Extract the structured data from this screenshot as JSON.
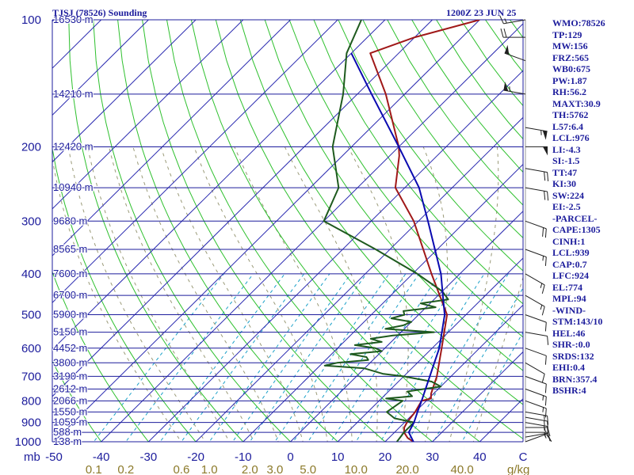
{
  "header": {
    "station_title": "TJSJ (78526) Sounding",
    "time_label": "1200Z 23 JUN 25"
  },
  "index_panel": [
    "WMO:78526",
    "TP:129",
    "MW:156",
    "FRZ:565",
    "WB0:675",
    "PW:1.87",
    "RH:56.2",
    "MAXT:30.9",
    "TH:5762",
    "L57:6.4",
    "LCL:976",
    "LI:-4.3",
    "SI:-1.5",
    "TT:47",
    "KI:30",
    "SW:224",
    "EI:-2.5",
    "-PARCEL-",
    "CAPE:1305",
    "CINH:1",
    "LCL:939",
    "CAP:0.7",
    "LFC:924",
    "EL:774",
    "MPL:94",
    "-WIND-",
    "STM:143/10",
    "HEL:46",
    "SHR-:0.0",
    "SRDS:132",
    "EHI:0.4",
    "BRN:357.4",
    "BSHR:4"
  ],
  "colors": {
    "isobar": "#1c1c9c",
    "isotherm": "#2a2ab0",
    "dry_adiabat": "#2ec02e",
    "moist_adiabat": "#9a9a78",
    "mixing_ratio": "#1aa0c8",
    "temperature": "#a01818",
    "dewpoint": "#1e5a1e",
    "parcel": "#0a0ab0",
    "wind": "#202020",
    "label_blue": "#1c1c9c",
    "label_olive": "#8c7a2a"
  },
  "chart_data": {
    "type": "line",
    "chart_kind": "skew-T log-P",
    "pressure_range_mb": [
      1000,
      100
    ],
    "temperature_range_c": [
      -50,
      50
    ],
    "pressure_axis_label": "mb",
    "mixing_ratio_unit": "g/kg",
    "pressure_ticks": [
      "100",
      "200",
      "300",
      "400",
      "500",
      "600",
      "700",
      "800",
      "900",
      "1000"
    ],
    "temperature_ticks": [
      "-50",
      "-40",
      "-30",
      "-20",
      "-10",
      "0",
      "10",
      "20",
      "30",
      "40",
      "C"
    ],
    "mixing_ratio_ticks": [
      "0.1",
      "0.2",
      "0.6",
      "1.0",
      "2.0",
      "3.0",
      "5.0",
      "10.0",
      "20.0",
      "40.0"
    ],
    "height_labels": [
      {
        "p": 100,
        "label": "16530 m"
      },
      {
        "p": 150,
        "label": "14210 m"
      },
      {
        "p": 200,
        "label": "12420 m"
      },
      {
        "p": 250,
        "label": "10940 m"
      },
      {
        "p": 300,
        "label": "9680 m"
      },
      {
        "p": 350,
        "label": "8565 m"
      },
      {
        "p": 400,
        "label": "7600 m"
      },
      {
        "p": 450,
        "label": "6700 m"
      },
      {
        "p": 500,
        "label": "5900 m"
      },
      {
        "p": 550,
        "label": "5150 m"
      },
      {
        "p": 600,
        "label": "4452 m"
      },
      {
        "p": 650,
        "label": "3800 m"
      },
      {
        "p": 700,
        "label": "3190 m"
      },
      {
        "p": 750,
        "label": "2612 m"
      },
      {
        "p": 800,
        "label": "2066 m"
      },
      {
        "p": 850,
        "label": "1550 m"
      },
      {
        "p": 900,
        "label": "1059 m"
      },
      {
        "p": 950,
        "label": "588 m"
      },
      {
        "p": 1000,
        "label": "138 m"
      }
    ],
    "series": [
      {
        "name": "temperature",
        "points": [
          [
            1000,
            26
          ],
          [
            980,
            24
          ],
          [
            950,
            22
          ],
          [
            925,
            21
          ],
          [
            900,
            20.5
          ],
          [
            850,
            20
          ],
          [
            800,
            19
          ],
          [
            790,
            20.5
          ],
          [
            770,
            19.5
          ],
          [
            700,
            17
          ],
          [
            600,
            12
          ],
          [
            500,
            6
          ],
          [
            400,
            -6
          ],
          [
            300,
            -21
          ],
          [
            250,
            -32
          ],
          [
            210,
            -38
          ],
          [
            200,
            -40
          ],
          [
            150,
            -54
          ],
          [
            120,
            -66
          ],
          [
            110,
            -60
          ],
          [
            100,
            -50
          ]
        ]
      },
      {
        "name": "dewpoint",
        "points": [
          [
            1000,
            22.5
          ],
          [
            950,
            22
          ],
          [
            900,
            22
          ],
          [
            880,
            17
          ],
          [
            850,
            14
          ],
          [
            800,
            15
          ],
          [
            790,
            11
          ],
          [
            780,
            16
          ],
          [
            760,
            14
          ],
          [
            740,
            20
          ],
          [
            720,
            17
          ],
          [
            700,
            10
          ],
          [
            690,
            5
          ],
          [
            670,
            0
          ],
          [
            660,
            -9
          ],
          [
            650,
            -7
          ],
          [
            640,
            -1
          ],
          [
            630,
            -2
          ],
          [
            620,
            -6
          ],
          [
            610,
            0
          ],
          [
            600,
            -2
          ],
          [
            590,
            -7
          ],
          [
            580,
            -2
          ],
          [
            570,
            -5
          ],
          [
            560,
            -1
          ],
          [
            550,
            7
          ],
          [
            540,
            -4
          ],
          [
            530,
            -1
          ],
          [
            520,
            0
          ],
          [
            510,
            -5
          ],
          [
            500,
            -3
          ],
          [
            490,
            -4
          ],
          [
            480,
            2
          ],
          [
            470,
            -2
          ],
          [
            460,
            3
          ],
          [
            440,
            0
          ],
          [
            400,
            -9
          ],
          [
            350,
            -23
          ],
          [
            300,
            -40
          ],
          [
            250,
            -44
          ],
          [
            200,
            -54
          ],
          [
            150,
            -63
          ],
          [
            120,
            -71
          ],
          [
            100,
            -75
          ]
        ]
      },
      {
        "name": "parcel",
        "points": [
          [
            1000,
            26
          ],
          [
            950,
            23
          ],
          [
            900,
            22
          ],
          [
            850,
            20.5
          ],
          [
            800,
            19
          ],
          [
            700,
            15.5
          ],
          [
            600,
            11.5
          ],
          [
            500,
            5.5
          ],
          [
            450,
            1
          ],
          [
            400,
            -4
          ],
          [
            300,
            -18
          ],
          [
            250,
            -27
          ],
          [
            200,
            -40
          ],
          [
            150,
            -57
          ],
          [
            120,
            -70
          ]
        ]
      }
    ],
    "wind_barbs": [
      {
        "p": 1000,
        "dir": 70,
        "speed": 10
      },
      {
        "p": 975,
        "dir": 80,
        "speed": 15
      },
      {
        "p": 950,
        "dir": 90,
        "speed": 15
      },
      {
        "p": 925,
        "dir": 90,
        "speed": 15
      },
      {
        "p": 900,
        "dir": 100,
        "speed": 15
      },
      {
        "p": 875,
        "dir": 100,
        "speed": 15
      },
      {
        "p": 850,
        "dir": 100,
        "speed": 15
      },
      {
        "p": 800,
        "dir": 110,
        "speed": 15
      },
      {
        "p": 750,
        "dir": 110,
        "speed": 15
      },
      {
        "p": 700,
        "dir": 110,
        "speed": 10
      },
      {
        "p": 650,
        "dir": 120,
        "speed": 10
      },
      {
        "p": 600,
        "dir": 110,
        "speed": 10
      },
      {
        "p": 550,
        "dir": 100,
        "speed": 10
      },
      {
        "p": 500,
        "dir": 110,
        "speed": 10
      },
      {
        "p": 450,
        "dir": 120,
        "speed": 15
      },
      {
        "p": 400,
        "dir": 120,
        "speed": 15
      },
      {
        "p": 350,
        "dir": 110,
        "speed": 15
      },
      {
        "p": 300,
        "dir": 110,
        "speed": 20
      },
      {
        "p": 250,
        "dir": 100,
        "speed": 20
      },
      {
        "p": 225,
        "dir": 100,
        "speed": 20
      },
      {
        "p": 200,
        "dir": 90,
        "speed": 50
      },
      {
        "p": 180,
        "dir": 100,
        "speed": 55
      },
      {
        "p": 150,
        "dir": 280,
        "speed": 55
      },
      {
        "p": 125,
        "dir": 290,
        "speed": 50
      },
      {
        "p": 110,
        "dir": 270,
        "speed": 20
      },
      {
        "p": 100,
        "dir": 260,
        "speed": 15
      }
    ]
  }
}
